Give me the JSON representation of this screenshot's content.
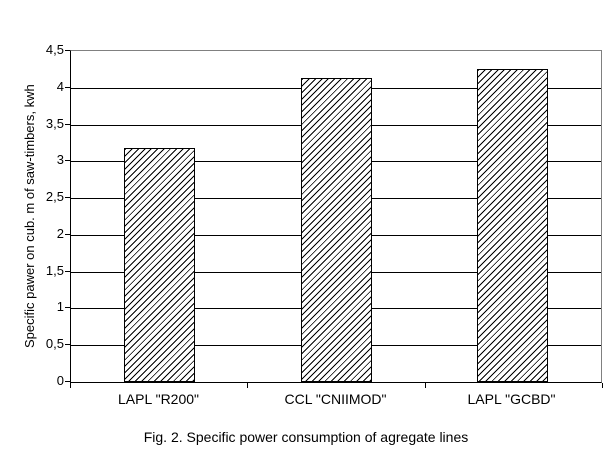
{
  "figure": {
    "caption": "Fig. 2. Specific power consumption of agregate lines"
  },
  "chart_data": {
    "type": "bar",
    "title": "",
    "xlabel": "",
    "ylabel": "Specific pawer on cub. m of saw-timbers, kwh",
    "categories": [
      "LAPL \"R200\"",
      "CCL \"CNIIMOD\"",
      "LAPL \"GCBD\""
    ],
    "values": [
      3.18,
      4.13,
      4.25
    ],
    "ylim": [
      0,
      4.5
    ],
    "ytick_step": 0.5,
    "yticks": [
      {
        "value": 0,
        "label": "0"
      },
      {
        "value": 0.5,
        "label": "0,5"
      },
      {
        "value": 1,
        "label": "1"
      },
      {
        "value": 1.5,
        "label": "1,5"
      },
      {
        "value": 2,
        "label": "2"
      },
      {
        "value": 2.5,
        "label": "2,5"
      },
      {
        "value": 3,
        "label": "3"
      },
      {
        "value": 3.5,
        "label": "3,5"
      },
      {
        "value": 4,
        "label": "4"
      },
      {
        "value": 4.5,
        "label": "4,5"
      }
    ],
    "grid": true,
    "legend": "none",
    "colors": {
      "bar_fill": "#ffffff",
      "bar_hatch": "#000000",
      "bar_border": "#000000",
      "gridline": "#000000",
      "plot_border": "#808080",
      "axis": "#000000",
      "text": "#000000",
      "background": "#ffffff"
    }
  }
}
